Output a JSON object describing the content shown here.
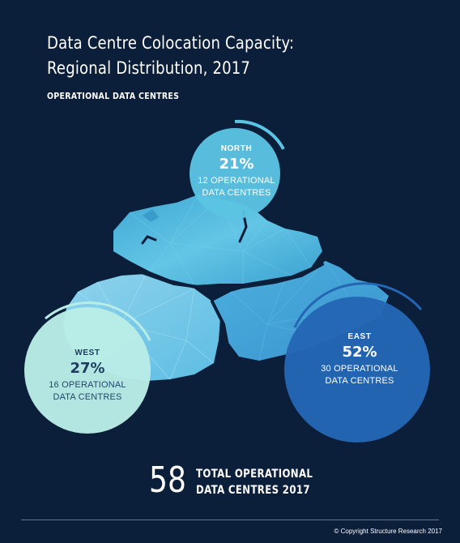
{
  "title_line1": "Data Centre Colocation Capacity:",
  "title_line2": "Regional Distribution, 2017",
  "subtitle": "OPERATIONAL DATA CENTRES",
  "regions": {
    "north": {
      "name": "NORTH",
      "percent": "21%",
      "line1": "12 OPERATIONAL",
      "line2": "DATA CENTRES",
      "color": "#5cc4e3"
    },
    "west": {
      "name": "WEST",
      "percent": "27%",
      "line1": "16 OPERATIONAL",
      "line2": "DATA CENTRES",
      "color": "#b9ece6"
    },
    "east": {
      "name": "EAST",
      "percent": "52%",
      "line1": "30 OPERATIONAL",
      "line2": "DATA CENTRES",
      "color": "#2466b4"
    }
  },
  "total": {
    "number": "58",
    "line1": "TOTAL OPERATIONAL",
    "line2": "DATA CENTRES 2017"
  },
  "copyright": "© Copyright Structure Research 2017",
  "colors": {
    "background": "#0b1e3a",
    "map_base": "#4fb3da",
    "map_light": "#8fd3ec"
  }
}
